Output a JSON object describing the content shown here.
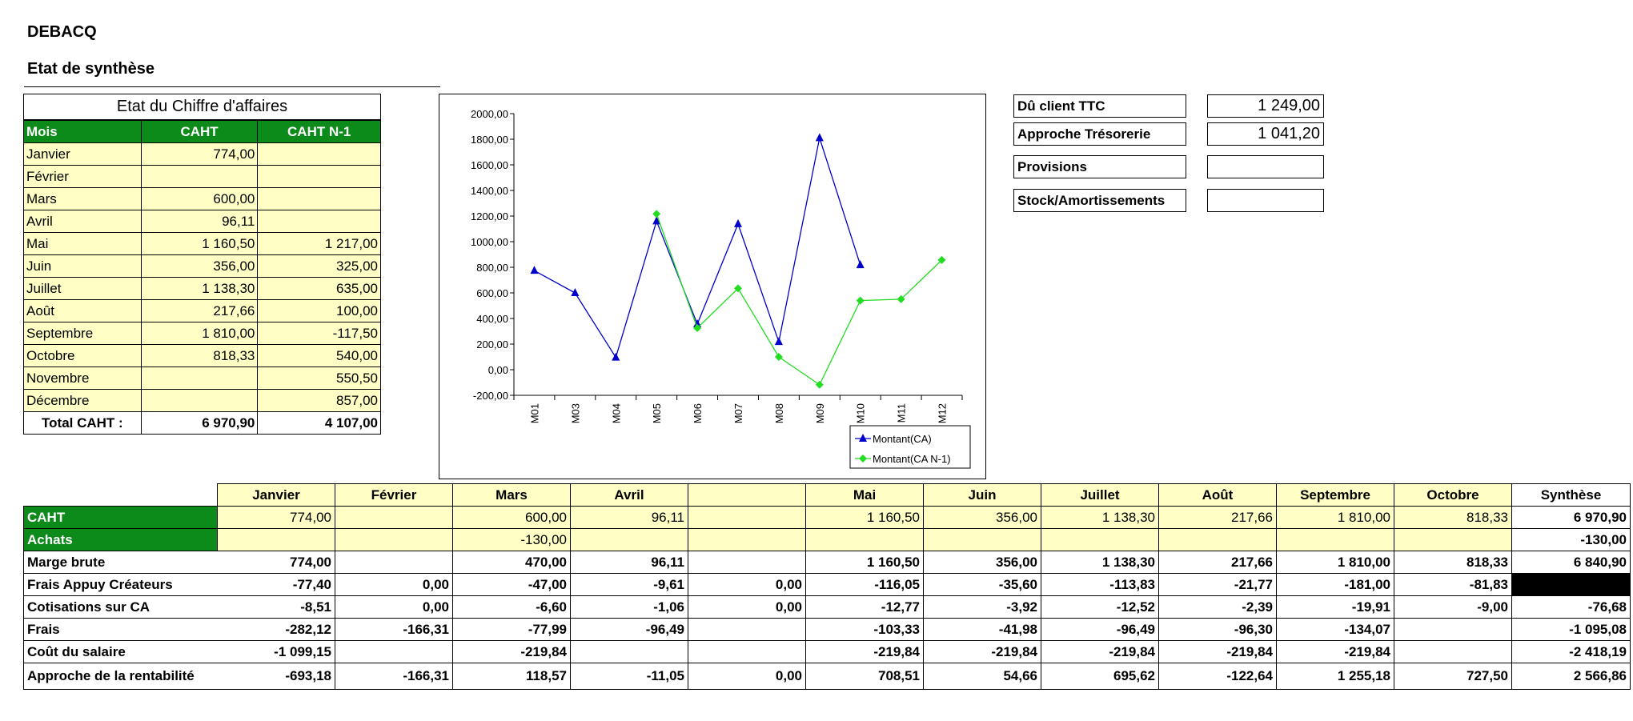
{
  "header": {
    "company": "DEBACQ",
    "subtitle": "Etat de synthèse"
  },
  "ca_table": {
    "title": "Etat du Chiffre d'affaires",
    "columns": [
      "Mois",
      "CAHT",
      "CAHT N-1"
    ],
    "rows": [
      {
        "month": "Janvier",
        "caht": "774,00",
        "caht_n1": ""
      },
      {
        "month": "Février",
        "caht": "",
        "caht_n1": ""
      },
      {
        "month": "Mars",
        "caht": "600,00",
        "caht_n1": ""
      },
      {
        "month": "Avril",
        "caht": "96,11",
        "caht_n1": ""
      },
      {
        "month": "Mai",
        "caht": "1 160,50",
        "caht_n1": "1 217,00"
      },
      {
        "month": "Juin",
        "caht": "356,00",
        "caht_n1": "325,00"
      },
      {
        "month": "Juillet",
        "caht": "1 138,30",
        "caht_n1": "635,00"
      },
      {
        "month": "Août",
        "caht": "217,66",
        "caht_n1": "100,00"
      },
      {
        "month": "Septembre",
        "caht": "1 810,00",
        "caht_n1": "-117,50"
      },
      {
        "month": "Octobre",
        "caht": "818,33",
        "caht_n1": "540,00"
      },
      {
        "month": "Novembre",
        "caht": "",
        "caht_n1": "550,50"
      },
      {
        "month": "Décembre",
        "caht": "",
        "caht_n1": "857,00"
      }
    ],
    "total": {
      "label": "Total CAHT :",
      "caht": "6 970,90",
      "caht_n1": "4 107,00"
    }
  },
  "chart_data": {
    "type": "line",
    "categories": [
      "M01",
      "M03",
      "M04",
      "M05",
      "M06",
      "M07",
      "M08",
      "M09",
      "M10",
      "M11",
      "M12"
    ],
    "ylim": [
      -200,
      2000
    ],
    "yticks": [
      "2000,00",
      "1800,00",
      "1600,00",
      "1400,00",
      "1200,00",
      "1000,00",
      "800,00",
      "600,00",
      "400,00",
      "200,00",
      "0,00",
      "-200,00"
    ],
    "legend_position": "bottom-right",
    "series": [
      {
        "name": "Montant(CA)",
        "color": "#0000cc",
        "marker": "triangle",
        "values": [
          774,
          600,
          96.11,
          1160.5,
          356,
          1138.3,
          217.66,
          1810,
          818.33,
          null,
          null
        ]
      },
      {
        "name": "Montant(CA N-1)",
        "color": "#22dd22",
        "marker": "diamond",
        "values": [
          null,
          null,
          null,
          1217,
          325,
          635,
          100,
          -117.5,
          540,
          550.5,
          857
        ]
      }
    ]
  },
  "info": {
    "du_client_label": "Dû client TTC",
    "du_client_value": "1 249,00",
    "tresorerie_label": "Approche Trésorerie",
    "tresorerie_value": "1 041,20",
    "provisions_label": "Provisions",
    "provisions_value": "",
    "stock_label": "Stock/Amortissements",
    "stock_value": ""
  },
  "synthesis": {
    "months": [
      "Janvier",
      "Février",
      "Mars",
      "Avril",
      "",
      "Mai",
      "Juin",
      "Juillet",
      "Août",
      "Septembre",
      "Octobre"
    ],
    "synth_header": "Synthèse",
    "rows": [
      {
        "label": "CAHT",
        "style": "green",
        "values": [
          "774,00",
          "",
          "600,00",
          "96,11",
          "",
          "1 160,50",
          "356,00",
          "1 138,30",
          "217,66",
          "1 810,00",
          "818,33"
        ],
        "synth": "6 970,90"
      },
      {
        "label": "Achats",
        "style": "green",
        "values": [
          "",
          "",
          "-130,00",
          "",
          "",
          "",
          "",
          "",
          "",
          "",
          ""
        ],
        "synth": "-130,00"
      },
      {
        "label": "Marge brute",
        "style": "plain",
        "values": [
          "774,00",
          "",
          "470,00",
          "96,11",
          "",
          "1 160,50",
          "356,00",
          "1 138,30",
          "217,66",
          "1 810,00",
          "818,33"
        ],
        "synth": "6 840,90"
      },
      {
        "label": "Frais Appuy Créateurs",
        "style": "plain",
        "values": [
          "-77,40",
          "0,00",
          "-47,00",
          "-9,61",
          "0,00",
          "-116,05",
          "-35,60",
          "-113,83",
          "-21,77",
          "-181,00",
          "-81,83"
        ],
        "synth": "",
        "synth_black": true
      },
      {
        "label": "Cotisations sur CA",
        "style": "plain",
        "values": [
          "-8,51",
          "0,00",
          "-6,60",
          "-1,06",
          "0,00",
          "-12,77",
          "-3,92",
          "-12,52",
          "-2,39",
          "-19,91",
          "-9,00"
        ],
        "synth": "-76,68"
      },
      {
        "label": "Frais",
        "style": "plain",
        "values": [
          "-282,12",
          "-166,31",
          "-77,99",
          "-96,49",
          "",
          "-103,33",
          "-41,98",
          "-96,49",
          "-96,30",
          "-134,07",
          ""
        ],
        "synth": "-1 095,08"
      },
      {
        "label": "Coût du salaire",
        "style": "plain",
        "values": [
          "-1 099,15",
          "",
          "-219,84",
          "",
          "",
          "-219,84",
          "-219,84",
          "-219,84",
          "-219,84",
          "-219,84",
          ""
        ],
        "synth": "-2 418,19"
      },
      {
        "label": "Approche de la rentabilité",
        "style": "plain tall",
        "values": [
          "-693,18",
          "-166,31",
          "118,57",
          "-11,05",
          "0,00",
          "708,51",
          "54,66",
          "695,62",
          "-122,64",
          "1 255,18",
          "727,50"
        ],
        "synth": "2 566,86"
      }
    ]
  }
}
